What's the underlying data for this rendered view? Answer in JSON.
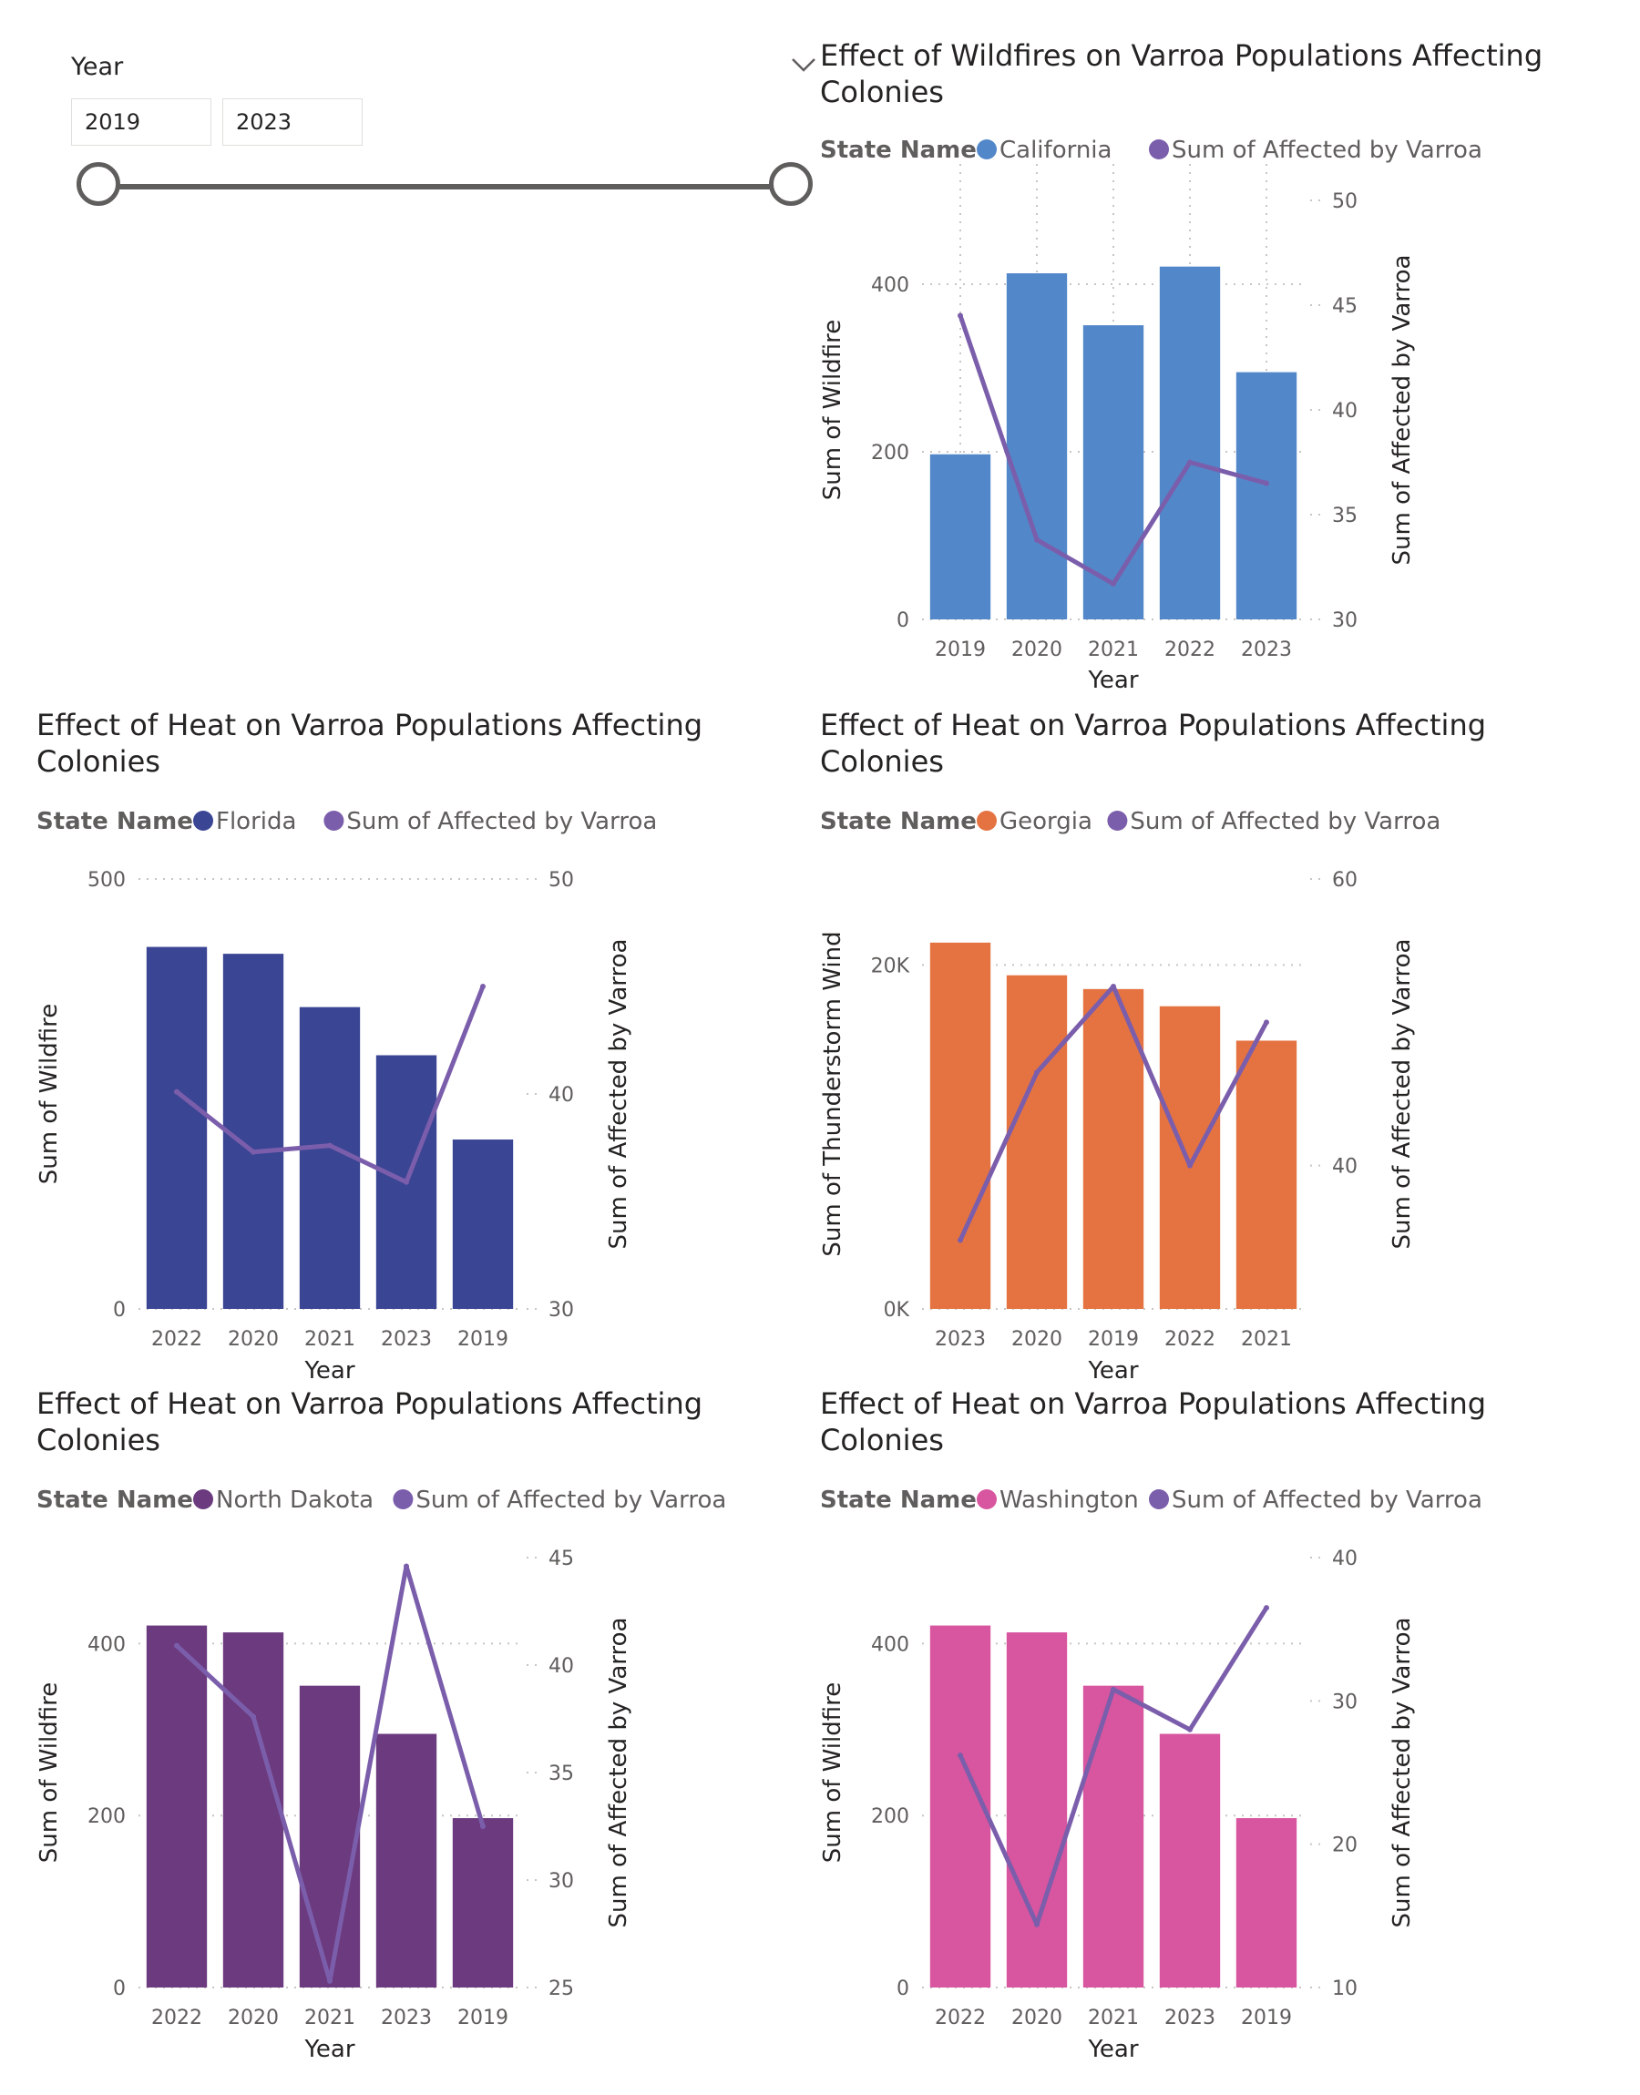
{
  "slicer": {
    "title": "Year",
    "start_value": "2019",
    "end_value": "2023",
    "range_fraction": [
      0,
      1
    ],
    "icon": "chevron-down-icon"
  },
  "colors": {
    "line": "#7b5eab",
    "grid": "#c8c6c4",
    "tick": "#605e5c"
  },
  "chart_data": [
    {
      "id": "california",
      "type": "bar",
      "title_lines": [
        "Effect of Wildfires on Varroa Populations Affecting",
        "Colonies"
      ],
      "legend_title": "State Name",
      "legend_items": [
        "California",
        "Sum of Affected by Varroa"
      ],
      "bar_color": "#5287c9",
      "categories": [
        "2019",
        "2020",
        "2021",
        "2022",
        "2023"
      ],
      "series": [
        {
          "name": "California",
          "axis": "left",
          "values": [
            197,
            413,
            351,
            421,
            295
          ]
        },
        {
          "name": "Sum of Affected by Varroa",
          "axis": "right",
          "kind": "line",
          "values": [
            44.5,
            33.8,
            31.7,
            37.5,
            36.5
          ]
        }
      ],
      "xlabel": "Year",
      "ylabel": "Sum of Wildfire",
      "y2label": "Sum of Affected by Varroa",
      "ylim": [
        0,
        500
      ],
      "yticks": [
        0,
        200,
        400
      ],
      "ytick_labels": [
        "0",
        "200",
        "400"
      ],
      "y2lim": [
        30,
        50
      ],
      "y2ticks": [
        30,
        35,
        40,
        45,
        50
      ],
      "vertical_grid": true
    },
    {
      "id": "florida",
      "type": "bar",
      "title_lines": [
        "Effect of Heat on Varroa Populations Affecting",
        "Colonies"
      ],
      "legend_title": "State Name",
      "legend_items": [
        "Florida",
        "Sum of Affected by Varroa"
      ],
      "bar_color": "#3a4594",
      "categories": [
        "2022",
        "2020",
        "2021",
        "2023",
        "2019"
      ],
      "series": [
        {
          "name": "Florida",
          "axis": "left",
          "values": [
            421,
            413,
            351,
            295,
            197
          ]
        },
        {
          "name": "Sum of Affected by Varroa",
          "axis": "right",
          "kind": "line",
          "values": [
            40.1,
            37.3,
            37.6,
            35.9,
            45.0
          ]
        }
      ],
      "xlabel": "Year",
      "ylabel": "Sum of Wildfire",
      "y2label": "Sum of Affected by Varroa",
      "ylim": [
        0,
        500
      ],
      "yticks": [
        0,
        500
      ],
      "ytick_labels": [
        "0",
        "500"
      ],
      "y2lim": [
        30,
        50
      ],
      "y2ticks": [
        30,
        40,
        50
      ],
      "vertical_grid": false
    },
    {
      "id": "georgia",
      "type": "bar",
      "title_lines": [
        "Effect of Heat on Varroa Populations Affecting",
        "Colonies"
      ],
      "legend_title": "State Name",
      "legend_items": [
        "Georgia",
        "Sum of Affected by Varroa"
      ],
      "bar_color": "#e57341",
      "categories": [
        "2023",
        "2020",
        "2019",
        "2022",
        "2021"
      ],
      "series": [
        {
          "name": "Georgia",
          "axis": "left",
          "values": [
            21300,
            19400,
            18600,
            17600,
            15600
          ]
        },
        {
          "name": "Sum of Affected by Varroa",
          "axis": "right",
          "kind": "line",
          "values": [
            34.8,
            46.5,
            52.5,
            40.0,
            50.0
          ]
        }
      ],
      "xlabel": "Year",
      "ylabel": "Sum of Thunderstorm Wind",
      "y2label": "Sum of Affected by Varroa",
      "ylim": [
        0,
        25000
      ],
      "yticks": [
        0,
        20000
      ],
      "ytick_labels": [
        "0K",
        "20K"
      ],
      "y2lim": [
        30,
        60
      ],
      "y2ticks": [
        40,
        60
      ],
      "vertical_grid": false
    },
    {
      "id": "north-dakota",
      "type": "bar",
      "title_lines": [
        "Effect of Heat on Varroa Populations Affecting",
        "Colonies"
      ],
      "legend_title": "State Name",
      "legend_items": [
        "North Dakota",
        "Sum of Affected by Varroa"
      ],
      "bar_color": "#6c3a7e",
      "categories": [
        "2022",
        "2020",
        "2021",
        "2023",
        "2019"
      ],
      "series": [
        {
          "name": "North Dakota",
          "axis": "left",
          "values": [
            421,
            413,
            351,
            295,
            197
          ]
        },
        {
          "name": "Sum of Affected by Varroa",
          "axis": "right",
          "kind": "line",
          "values": [
            40.9,
            37.6,
            25.3,
            44.6,
            32.5
          ]
        }
      ],
      "xlabel": "Year",
      "ylabel": "Sum of Wildfire",
      "y2label": "Sum of Affected by Varroa",
      "ylim": [
        0,
        500
      ],
      "yticks": [
        0,
        200,
        400
      ],
      "ytick_labels": [
        "0",
        "200",
        "400"
      ],
      "y2lim": [
        25,
        45
      ],
      "y2ticks": [
        25,
        30,
        35,
        40,
        45
      ],
      "vertical_grid": false
    },
    {
      "id": "washington",
      "type": "bar",
      "title_lines": [
        "Effect of Heat on Varroa Populations Affecting",
        "Colonies"
      ],
      "legend_title": "State Name",
      "legend_items": [
        "Washington",
        "Sum of Affected by Varroa"
      ],
      "bar_color": "#d8559f",
      "categories": [
        "2022",
        "2020",
        "2021",
        "2023",
        "2019"
      ],
      "series": [
        {
          "name": "Washington",
          "axis": "left",
          "values": [
            421,
            413,
            351,
            295,
            197
          ]
        },
        {
          "name": "Sum of Affected by Varroa",
          "axis": "right",
          "kind": "line",
          "values": [
            26.2,
            14.4,
            30.8,
            28.0,
            36.5
          ]
        }
      ],
      "xlabel": "Year",
      "ylabel": "Sum of Wildfire",
      "y2label": "Sum of Affected by Varroa",
      "ylim": [
        0,
        500
      ],
      "yticks": [
        0,
        200,
        400
      ],
      "ytick_labels": [
        "0",
        "200",
        "400"
      ],
      "y2lim": [
        10,
        40
      ],
      "y2ticks": [
        10,
        20,
        30,
        40
      ],
      "vertical_grid": false
    }
  ]
}
